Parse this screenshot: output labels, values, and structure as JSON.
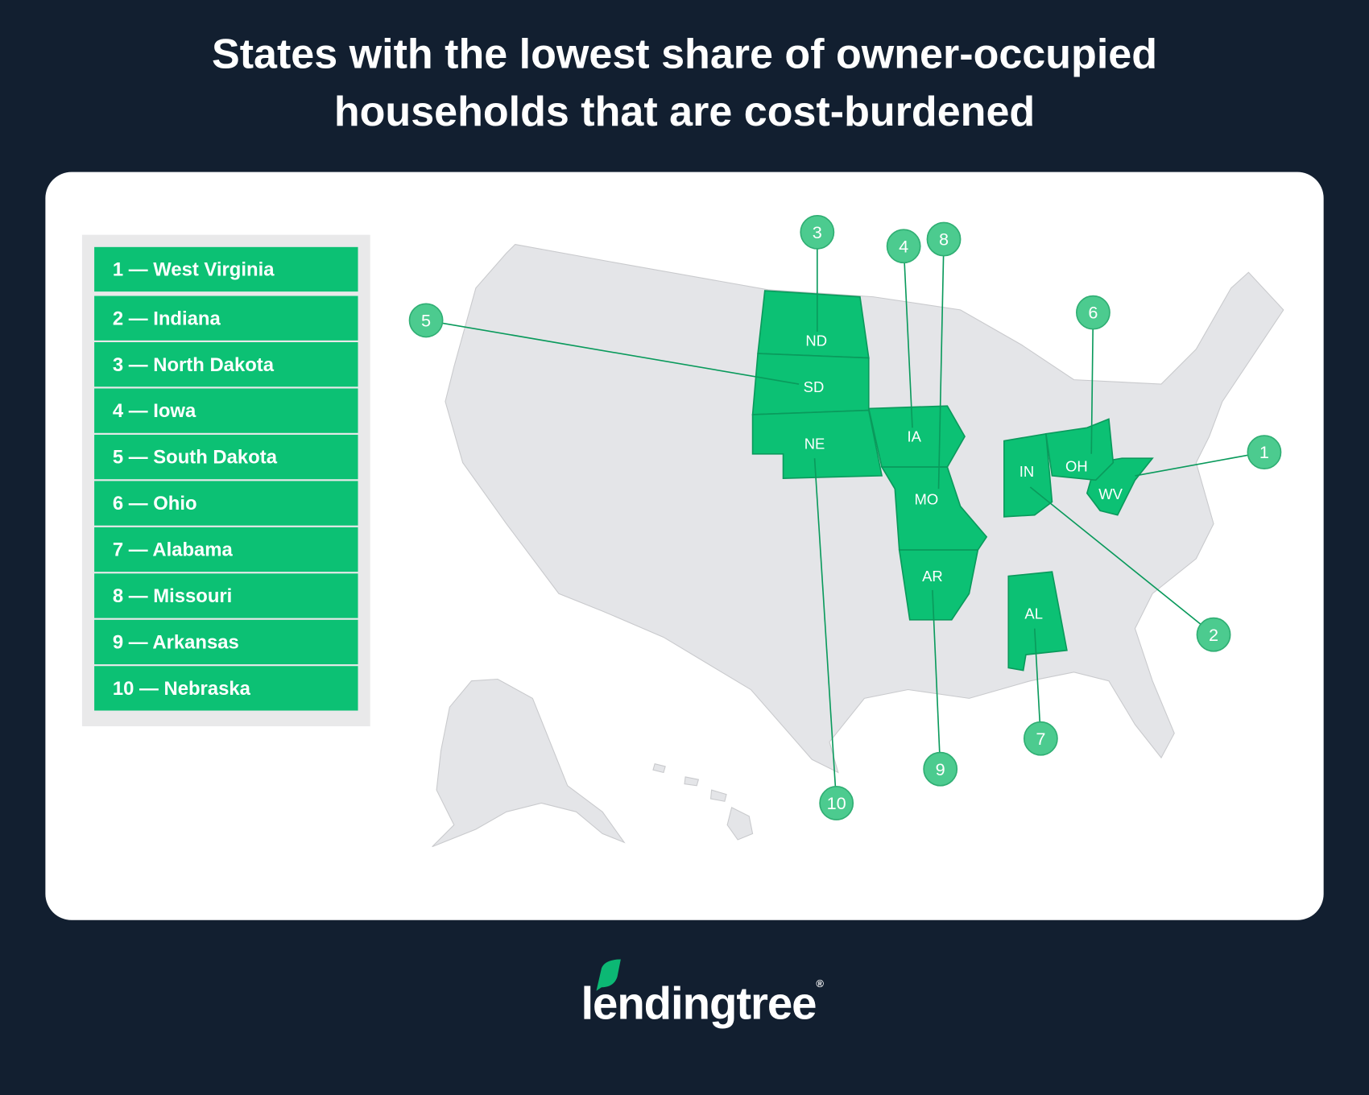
{
  "title_line1": "States with the lowest share of owner-occupied",
  "title_line2": "households that are cost-burdened",
  "legend": [
    "1 — West Virginia",
    "2 — Indiana",
    "3 — North Dakota",
    "4 — Iowa",
    "5 — South Dakota",
    "6 — Ohio",
    "7 — Alabama",
    "8 — Missouri",
    "9 — Arkansas",
    "10 — Nebraska"
  ],
  "map": {
    "highlight_color": "#0cc174",
    "callout_color": "#4ccb8f",
    "base_color": "#e4e5e8",
    "states": [
      {
        "abbr": "WV",
        "rank": "1"
      },
      {
        "abbr": "IN",
        "rank": "2"
      },
      {
        "abbr": "ND",
        "rank": "3"
      },
      {
        "abbr": "IA",
        "rank": "4"
      },
      {
        "abbr": "SD",
        "rank": "5"
      },
      {
        "abbr": "OH",
        "rank": "6"
      },
      {
        "abbr": "AL",
        "rank": "7"
      },
      {
        "abbr": "MO",
        "rank": "8"
      },
      {
        "abbr": "AR",
        "rank": "9"
      },
      {
        "abbr": "NE",
        "rank": "10"
      }
    ]
  },
  "logo": "lendingtree"
}
